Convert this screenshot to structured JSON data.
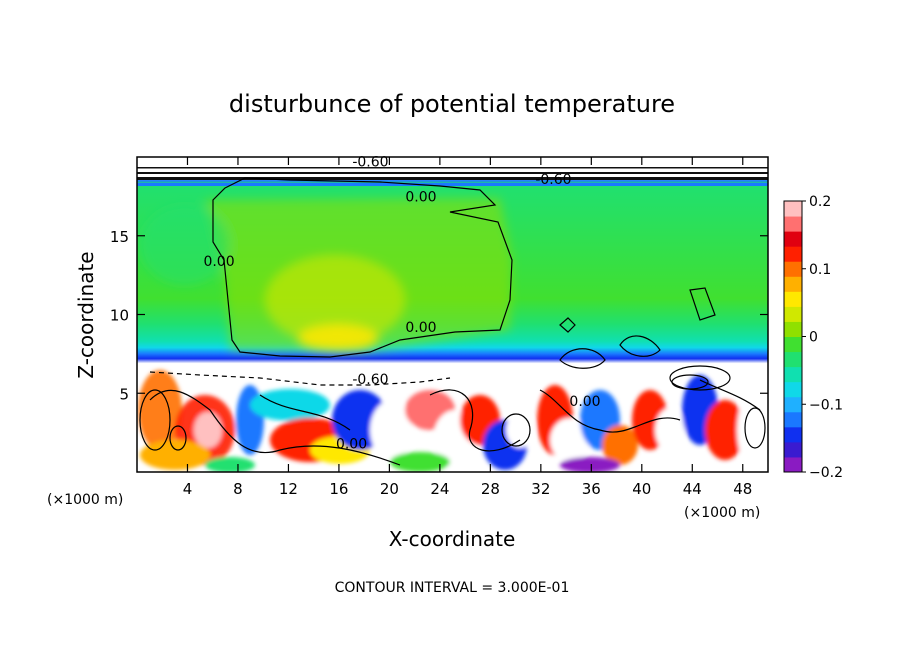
{
  "chart_data": {
    "type": "heatmap",
    "title": "disturbunce of potential temperature",
    "xlabel": "X-coordinate",
    "ylabel": "Z-coordinate",
    "x_unit_label": "(×1000 m)",
    "y_unit_label": "(×1000 m)",
    "footer": "CONTOUR INTERVAL = 3.000E-01",
    "xlim": [
      0,
      50
    ],
    "ylim": [
      0,
      20
    ],
    "x_ticks": [
      4,
      8,
      12,
      16,
      20,
      24,
      28,
      32,
      36,
      40,
      44,
      48
    ],
    "x_tick_labels": [
      "4",
      "8",
      "12",
      "16",
      "20",
      "24",
      "28",
      "32",
      "36",
      "40",
      "44",
      "48"
    ],
    "y_ticks": [
      5,
      10,
      15
    ],
    "y_tick_labels": [
      "5",
      "10",
      "15"
    ],
    "contour_labels": [
      {
        "text": "0.00",
        "x": 22.5,
        "y": 17.5
      },
      {
        "text": "0.00",
        "x": 6.5,
        "y": 13.4
      },
      {
        "text": "0.00",
        "x": 22.5,
        "y": 9.2
      },
      {
        "text": "-0.60",
        "x": 18.5,
        "y": 5.9
      },
      {
        "text": "0.00",
        "x": 35.5,
        "y": 4.5
      },
      {
        "text": "0.00",
        "x": 17.0,
        "y": 1.8
      },
      {
        "text": "-0.60",
        "x": 18.5,
        "y": 19.7
      },
      {
        "text": "-0.60",
        "x": 33.0,
        "y": 18.6
      }
    ],
    "colorbar": {
      "min": -0.2,
      "max": 0.2,
      "tick_values": [
        0.2,
        0.1,
        0,
        -0.1,
        -0.2
      ],
      "tick_labels": [
        "0.2",
        "0.1",
        "0",
        "−0.1",
        "−0.2"
      ],
      "colors": [
        "#8a1bc2",
        "#3a1bd0",
        "#1030f0",
        "#1a78ff",
        "#1fb0ff",
        "#10d8e8",
        "#10e0b0",
        "#20e070",
        "#40e030",
        "#90e000",
        "#d0e800",
        "#ffe800",
        "#ffb000",
        "#ff7000",
        "#ff2000",
        "#e00010",
        "#ff7070",
        "#ffc0c0"
      ]
    }
  }
}
